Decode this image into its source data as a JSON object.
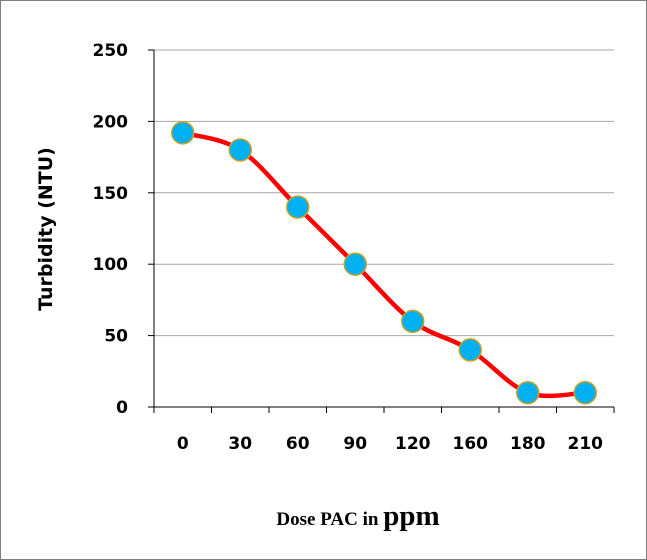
{
  "chart_data": {
    "type": "line",
    "title": "",
    "xlabel_parts": [
      "Dose PAC in ",
      "ppm"
    ],
    "ylabel": "Turbidity (NTU)",
    "categories": [
      "0",
      "30",
      "60",
      "90",
      "120",
      "160",
      "180",
      "210"
    ],
    "series": [
      {
        "values": [
          192,
          180,
          140,
          100,
          60,
          40,
          10,
          10
        ],
        "line_color": "#ff0000",
        "marker_fill": "#00b0f0",
        "marker_stroke": "#c9a227"
      }
    ],
    "ylim": [
      0,
      250
    ],
    "yticks": [
      0,
      50,
      100,
      150,
      200,
      250
    ],
    "grid": true,
    "legend": "none",
    "smooth": true
  }
}
